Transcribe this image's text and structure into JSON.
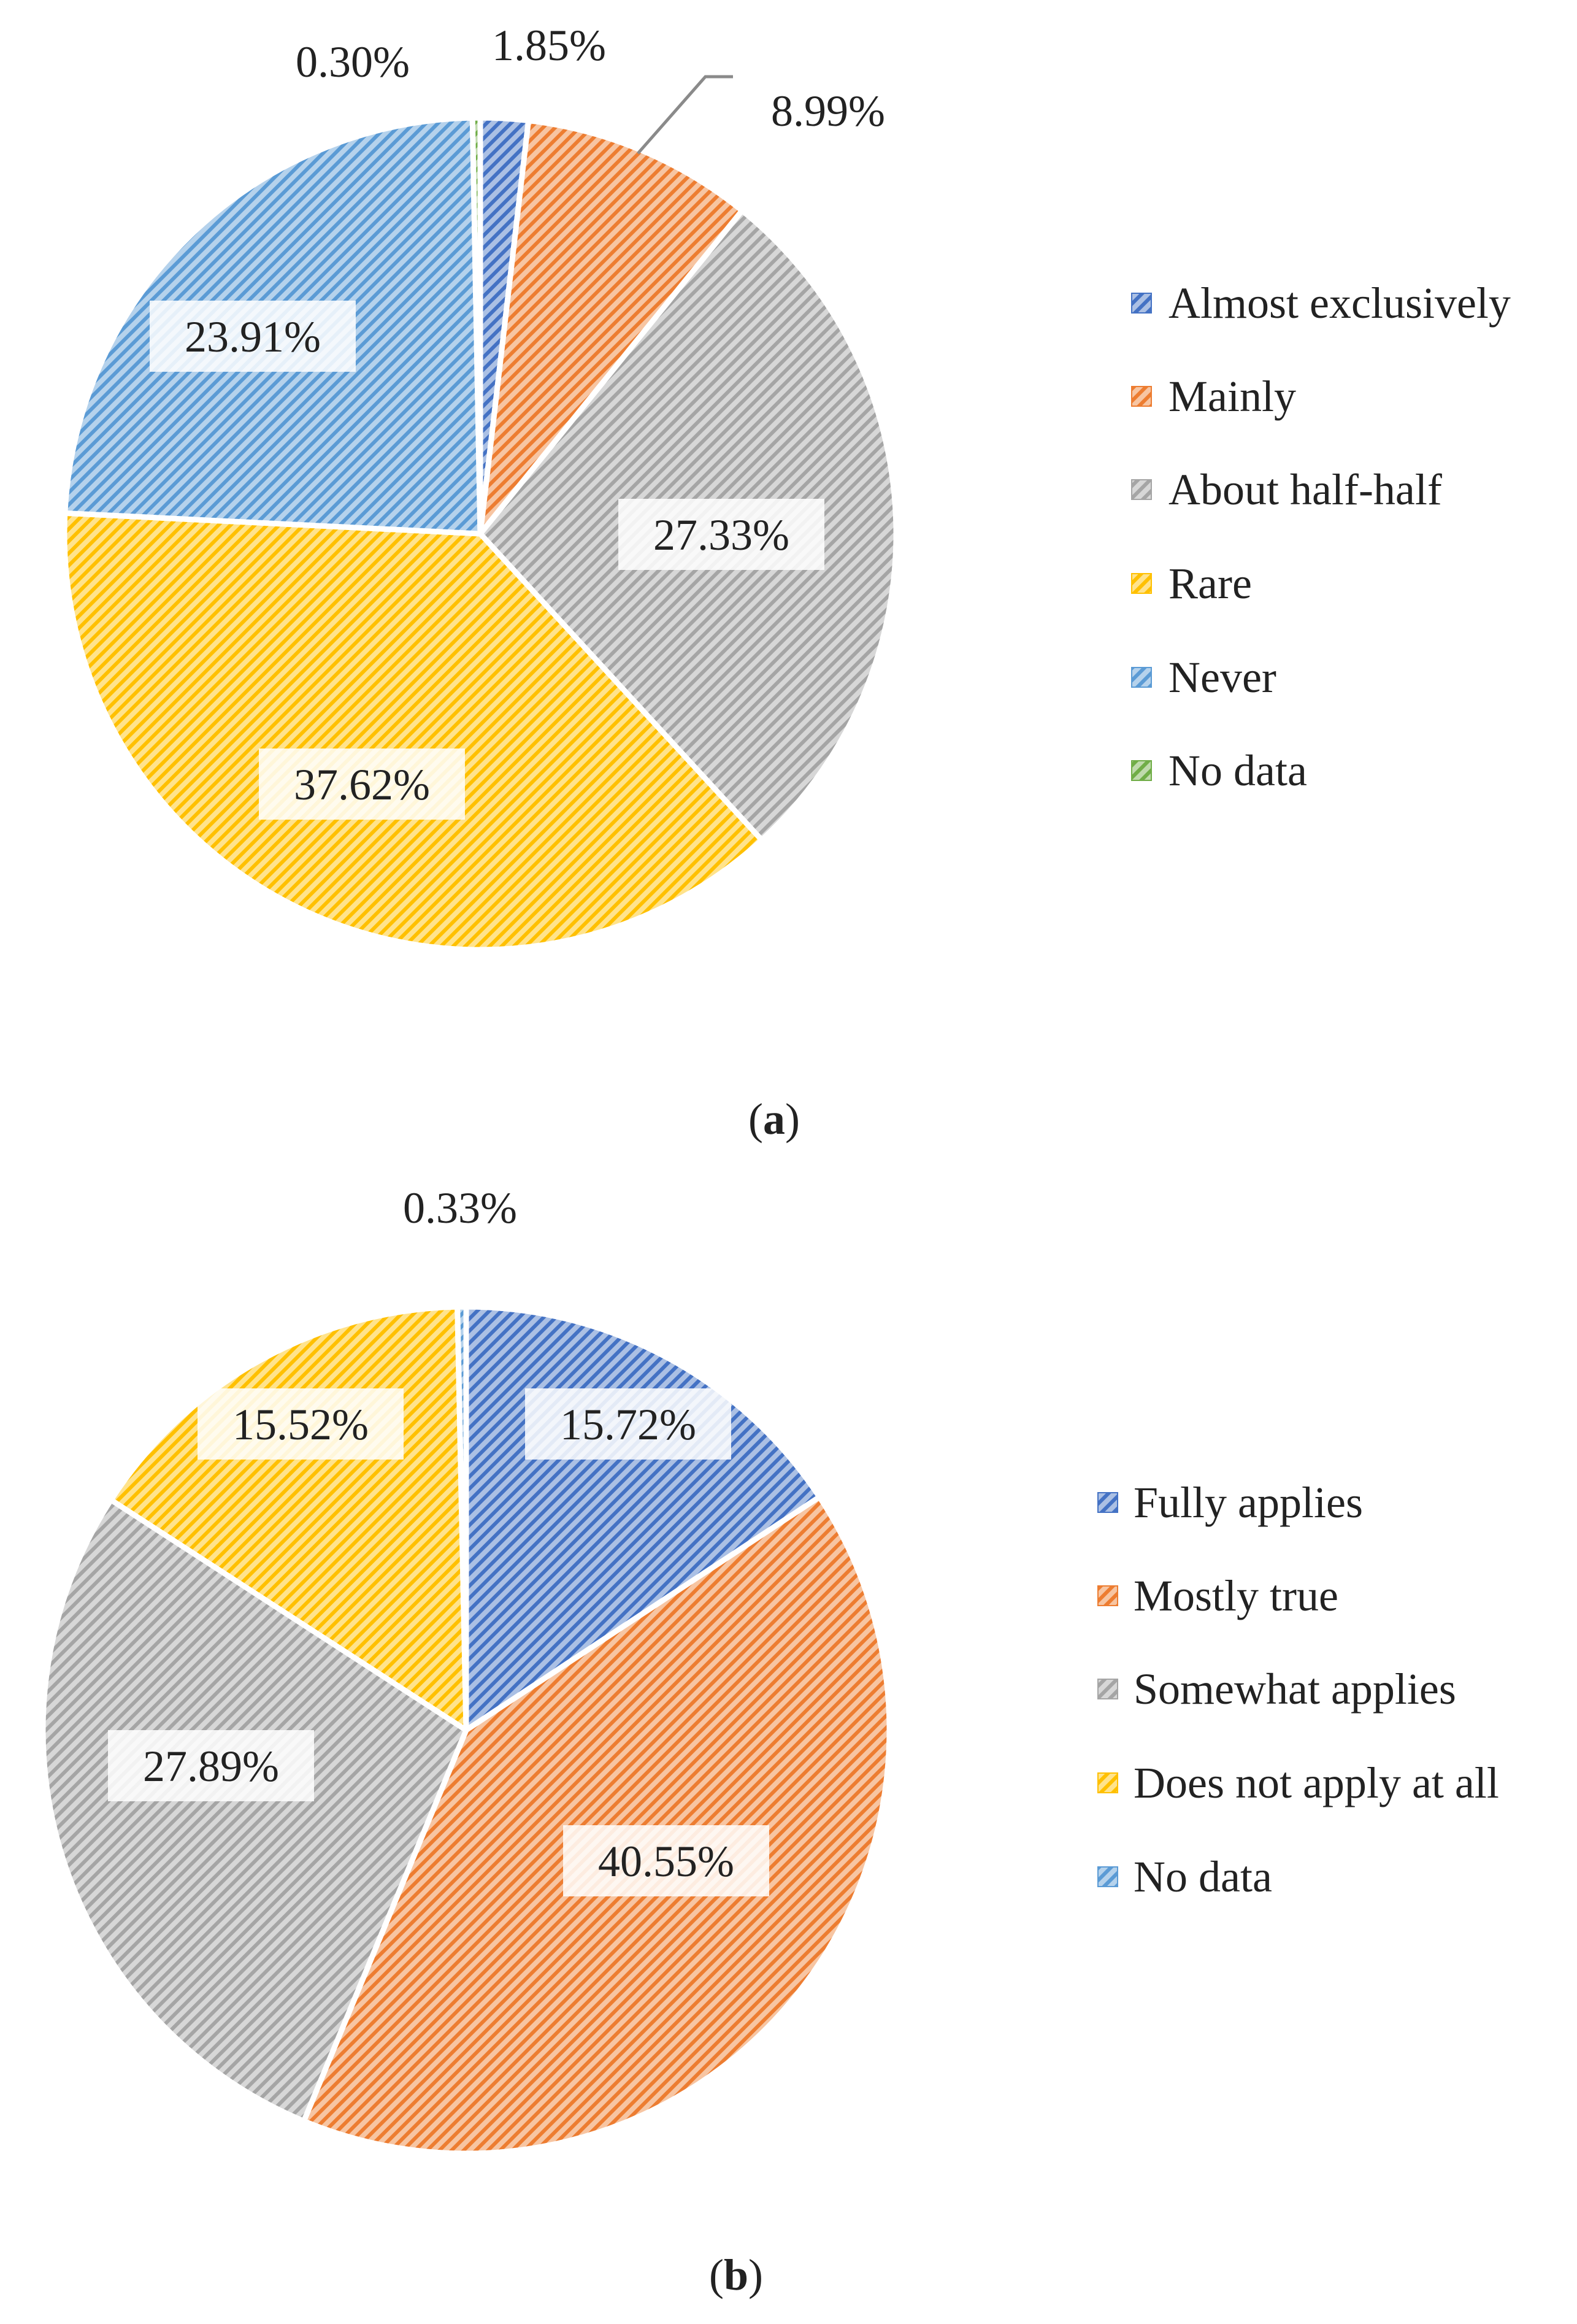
{
  "chart_data": [
    {
      "type": "pie",
      "caption_paren_open": "(",
      "caption_letter": "a",
      "caption_paren_close": ")",
      "categories": [
        "Almost exclusively",
        "Mainly",
        "About half-half",
        "Rare",
        "Never",
        "No data"
      ],
      "values": [
        1.85,
        8.99,
        27.33,
        37.62,
        23.91,
        0.3
      ],
      "labels": [
        "1.85%",
        "8.99%",
        "27.33%",
        "37.62%",
        "23.91%",
        "0.30%"
      ],
      "colors": [
        "#4472C4",
        "#ED7D31",
        "#A5A5A5",
        "#FFC000",
        "#5B9BD5",
        "#70AD47"
      ],
      "start_angle_deg": 0,
      "direction": "clockwise",
      "legend_position": "right"
    },
    {
      "type": "pie",
      "caption_paren_open": "(",
      "caption_letter": "b",
      "caption_paren_close": ")",
      "categories": [
        "Fully applies",
        "Mostly true",
        "Somewhat applies",
        "Does not apply at all",
        "No data"
      ],
      "values": [
        15.72,
        40.55,
        27.89,
        15.52,
        0.33
      ],
      "labels": [
        "15.72%",
        "40.55%",
        "27.89%",
        "15.52%",
        "0.33%"
      ],
      "colors": [
        "#4472C4",
        "#ED7D31",
        "#A5A5A5",
        "#FFC000",
        "#5B9BD5"
      ],
      "start_angle_deg": 0,
      "direction": "clockwise",
      "legend_position": "right"
    }
  ]
}
